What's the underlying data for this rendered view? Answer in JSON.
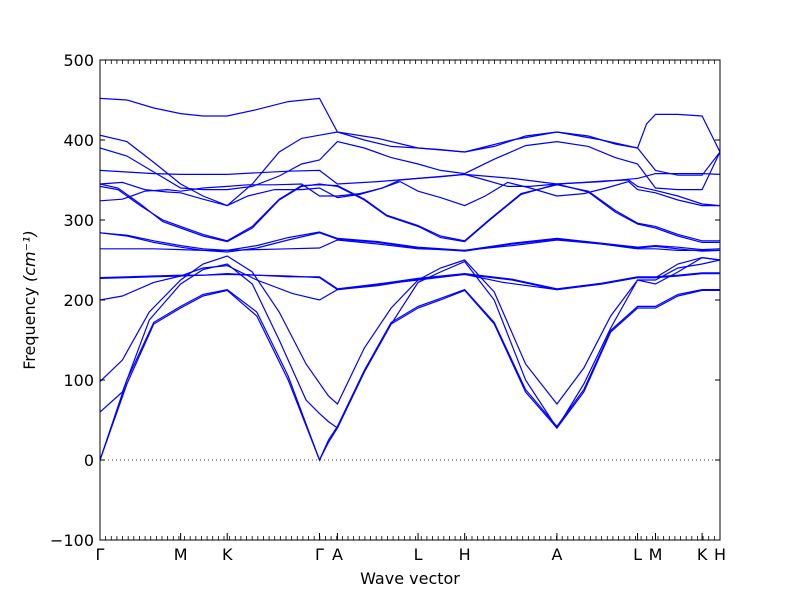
{
  "chart_data": {
    "type": "line",
    "xlabel": "Wave vector",
    "ylabel": "Frequency",
    "ylabel_unit": "(cm⁻¹)",
    "ylim": [
      -100,
      500
    ],
    "yticks": [
      -100,
      0,
      100,
      200,
      300,
      400,
      500
    ],
    "grid": false,
    "zero_line": {
      "y": 0,
      "style": "dotted"
    },
    "line_color": "#0000ff",
    "kpoints": [
      {
        "label": "Γ",
        "x": 0.0
      },
      {
        "label": "M",
        "x": 1.8
      },
      {
        "label": "K",
        "x": 2.84
      },
      {
        "label": "Γ",
        "x": 4.9
      },
      {
        "label": "A",
        "x": 5.3
      },
      {
        "label": "L",
        "x": 7.1
      },
      {
        "label": "H",
        "x": 8.14
      },
      {
        "label": "A",
        "x": 10.2
      },
      {
        "label": "L",
        "x": 12.0
      },
      {
        "label": "M",
        "x": 12.4
      },
      {
        "label": "K",
        "x": 13.44
      },
      {
        "label": "H",
        "x": 13.84
      }
    ],
    "series": [
      {
        "x": [
          0,
          0.6,
          1.2,
          1.8,
          2.3,
          2.84,
          3.5,
          4.2,
          4.9,
          5.1,
          5.3,
          5.9,
          6.5,
          7.1,
          7.6,
          8.14,
          8.8,
          9.5,
          10.2,
          10.8,
          11.4,
          12.0,
          12.4,
          12.9,
          13.44,
          13.84
        ],
        "y": [
          0,
          95,
          170,
          190,
          205,
          212,
          180,
          100,
          0,
          22,
          40,
          110,
          170,
          190,
          200,
          212,
          170,
          85,
          40,
          85,
          160,
          190,
          190,
          205,
          212,
          212
        ]
      },
      {
        "x": [
          0,
          0.6,
          1.2,
          1.8,
          2.3,
          2.84,
          3.5,
          4.2,
          4.9,
          5.1,
          5.3,
          5.9,
          6.5,
          7.1,
          7.6,
          8.14,
          8.8,
          9.5,
          10.2,
          10.8,
          11.4,
          12.0,
          12.4,
          12.9,
          13.44,
          13.84
        ],
        "y": [
          0,
          100,
          172,
          192,
          207,
          213,
          185,
          105,
          0,
          25,
          42,
          112,
          172,
          192,
          202,
          213,
          172,
          88,
          42,
          88,
          162,
          192,
          192,
          207,
          213,
          213
        ]
      },
      {
        "x": [
          0,
          0.5,
          1.1,
          1.8,
          2.3,
          2.84,
          3.4,
          4.0,
          4.6,
          4.9,
          5.1,
          5.3,
          5.9,
          6.5,
          7.1,
          7.6,
          8.14,
          8.8,
          9.5,
          10.2,
          10.8,
          11.4,
          12.0,
          12.4,
          12.9,
          13.44,
          13.84
        ],
        "y": [
          60,
          85,
          175,
          220,
          238,
          245,
          220,
          150,
          75,
          58,
          48,
          40,
          110,
          170,
          222,
          235,
          248,
          200,
          100,
          40,
          95,
          165,
          225,
          225,
          240,
          245,
          250
        ]
      },
      {
        "x": [
          0,
          0.5,
          1.1,
          1.8,
          2.3,
          2.84,
          3.4,
          4.0,
          4.6,
          4.9,
          5.1,
          5.3,
          5.9,
          6.5,
          7.1,
          7.6,
          8.14,
          8.8,
          9.5,
          10.2,
          10.8,
          11.4,
          12.0,
          12.4,
          12.9,
          13.44,
          13.84
        ],
        "y": [
          98,
          125,
          185,
          225,
          245,
          255,
          235,
          185,
          120,
          96,
          80,
          70,
          140,
          190,
          225,
          240,
          250,
          210,
          120,
          70,
          115,
          180,
          225,
          220,
          235,
          253,
          250
        ]
      },
      {
        "x": [
          0,
          0.5,
          1.2,
          1.8,
          2.3,
          2.84,
          3.5,
          4.3,
          4.9,
          5.3,
          6.0,
          7.1,
          8.14,
          9.0,
          10.2,
          11.2,
          12.0,
          12.4,
          12.9,
          13.44,
          13.84
        ],
        "y": [
          200,
          205,
          222,
          230,
          240,
          243,
          225,
          208,
          200,
          213,
          218,
          225,
          232,
          222,
          213,
          220,
          228,
          228,
          245,
          253,
          250
        ]
      },
      {
        "x": [
          0,
          0.6,
          1.2,
          1.8,
          2.3,
          2.84,
          3.5,
          4.2,
          4.9,
          5.3,
          6.2,
          7.1,
          8.14,
          9.2,
          10.2,
          11.2,
          12.0,
          12.4,
          12.9,
          13.44,
          13.84
        ],
        "y": [
          227,
          228,
          229,
          230,
          231,
          232,
          231,
          230,
          228,
          213,
          218,
          226,
          232,
          225,
          213,
          220,
          228,
          228,
          230,
          233,
          233
        ]
      },
      {
        "x": [
          0,
          0.6,
          1.2,
          1.8,
          2.3,
          2.84,
          3.5,
          4.2,
          4.9,
          5.3,
          6.2,
          7.1,
          8.14,
          9.2,
          10.2,
          11.2,
          12.0,
          12.4,
          12.9,
          13.44,
          13.84
        ],
        "y": [
          228,
          229,
          230,
          231,
          231,
          233,
          231,
          229,
          229,
          214,
          220,
          227,
          233,
          226,
          214,
          221,
          229,
          229,
          231,
          234,
          234
        ]
      },
      {
        "x": [
          0,
          0.6,
          1.2,
          1.8,
          2.3,
          2.84,
          3.5,
          4.2,
          4.9,
          5.3,
          6.2,
          7.1,
          8.14,
          9.2,
          10.2,
          11.2,
          12.0,
          12.4,
          12.9,
          13.44,
          13.84
        ],
        "y": [
          264,
          264,
          264,
          263,
          262,
          262,
          263,
          264,
          265,
          275,
          270,
          264,
          262,
          268,
          275,
          270,
          264,
          264,
          262,
          262,
          262
        ]
      },
      {
        "x": [
          0,
          0.6,
          1.2,
          1.8,
          2.3,
          2.84,
          3.5,
          4.2,
          4.9,
          5.3,
          6.2,
          7.1,
          8.14,
          9.2,
          10.2,
          11.2,
          12.0,
          12.4,
          12.9,
          13.44,
          13.84
        ],
        "y": [
          284,
          280,
          272,
          266,
          262,
          260,
          265,
          275,
          284,
          276,
          272,
          265,
          261,
          270,
          276,
          270,
          265,
          267,
          264,
          261,
          262
        ]
      },
      {
        "x": [
          0,
          0.6,
          1.2,
          1.8,
          2.3,
          2.84,
          3.5,
          4.2,
          4.9,
          5.3,
          6.2,
          7.1,
          8.14,
          9.2,
          10.2,
          11.2,
          12.0,
          12.4,
          12.9,
          13.44,
          13.84
        ],
        "y": [
          284,
          281,
          274,
          268,
          264,
          262,
          268,
          278,
          285,
          277,
          273,
          266,
          262,
          271,
          277,
          271,
          266,
          268,
          266,
          263,
          264
        ]
      },
      {
        "x": [
          0,
          0.4,
          0.9,
          1.4,
          1.8,
          2.3,
          2.84,
          3.4,
          4.0,
          4.5,
          4.9,
          5.3,
          5.9,
          6.4,
          7.1,
          7.6,
          8.14,
          8.7,
          9.4,
          10.2,
          10.9,
          11.5,
          12.0,
          12.4,
          12.9,
          13.44,
          13.84
        ],
        "y": [
          345,
          340,
          320,
          298,
          290,
          280,
          273,
          290,
          325,
          342,
          345,
          342,
          325,
          305,
          292,
          278,
          273,
          300,
          332,
          345,
          335,
          310,
          295,
          290,
          280,
          272,
          272
        ]
      },
      {
        "x": [
          0,
          0.4,
          0.9,
          1.4,
          1.8,
          2.3,
          2.84,
          3.4,
          4.0,
          4.5,
          4.9,
          5.3,
          5.9,
          6.4,
          7.1,
          7.6,
          8.14,
          8.7,
          9.4,
          10.2,
          10.9,
          11.5,
          12.0,
          12.4,
          12.9,
          13.44,
          13.84
        ],
        "y": [
          342,
          338,
          318,
          300,
          292,
          282,
          274,
          292,
          326,
          343,
          344,
          343,
          326,
          306,
          293,
          280,
          274,
          301,
          333,
          344,
          336,
          312,
          296,
          292,
          282,
          274,
          274
        ]
      },
      {
        "x": [
          0,
          0.5,
          1.0,
          1.5,
          1.8,
          2.3,
          2.84,
          3.3,
          3.9,
          4.5,
          4.9,
          5.3,
          5.8,
          6.3,
          6.7,
          7.1,
          7.6,
          8.14,
          8.6,
          9.1,
          9.6,
          10.2,
          10.8,
          11.3,
          11.8,
          12.0,
          12.4,
          12.9,
          13.44,
          13.84
        ],
        "y": [
          345,
          347,
          338,
          335,
          334,
          326,
          318,
          330,
          338,
          338,
          340,
          328,
          332,
          340,
          348,
          336,
          328,
          318,
          330,
          347,
          340,
          330,
          333,
          340,
          348,
          338,
          334,
          325,
          318,
          318
        ]
      },
      {
        "x": [
          0,
          0.5,
          1.0,
          1.5,
          1.8,
          2.3,
          2.84,
          3.3,
          3.9,
          4.5,
          4.9,
          5.3,
          5.8,
          6.3,
          6.7,
          7.1,
          7.6,
          8.14,
          8.6,
          9.1,
          9.6,
          10.2,
          10.8,
          11.3,
          11.8,
          12.0,
          12.4,
          12.9,
          13.44,
          13.84
        ],
        "y": [
          324,
          326,
          336,
          338,
          336,
          340,
          342,
          344,
          344,
          345,
          330,
          330,
          333,
          340,
          350,
          352,
          354,
          357,
          350,
          342,
          342,
          345,
          347,
          349,
          350,
          342,
          337,
          330,
          320,
          318
        ]
      },
      {
        "x": [
          0,
          0.6,
          1.2,
          1.8,
          2.3,
          2.84,
          3.5,
          4.2,
          4.9,
          5.3,
          6.2,
          7.1,
          8.14,
          9.2,
          10.2,
          11.2,
          12.0,
          12.4,
          12.9,
          13.44,
          13.84
        ],
        "y": [
          362,
          360,
          358,
          357,
          357,
          357,
          359,
          361,
          362,
          345,
          348,
          352,
          357,
          352,
          345,
          348,
          352,
          358,
          358,
          358,
          357
        ]
      },
      {
        "x": [
          0,
          0.6,
          1.2,
          1.8,
          2.3,
          2.84,
          3.4,
          4.0,
          4.5,
          4.9,
          5.3,
          5.9,
          6.5,
          7.1,
          7.6,
          8.14,
          8.8,
          9.5,
          10.2,
          10.9,
          11.5,
          12.0,
          12.4,
          12.9,
          13.44,
          13.84
        ],
        "y": [
          390,
          380,
          360,
          340,
          338,
          338,
          342,
          355,
          370,
          375,
          398,
          390,
          378,
          370,
          362,
          358,
          376,
          393,
          398,
          392,
          378,
          370,
          340,
          338,
          338,
          385
        ]
      },
      {
        "x": [
          0,
          0.6,
          1.2,
          1.8,
          2.3,
          2.84,
          3.4,
          4.0,
          4.5,
          4.9,
          5.3,
          5.9,
          6.5,
          7.1,
          7.6,
          8.14,
          8.8,
          9.5,
          10.2,
          10.9,
          11.5,
          12.0,
          12.4,
          12.9,
          13.44,
          13.84
        ],
        "y": [
          406,
          398,
          372,
          345,
          330,
          318,
          345,
          385,
          402,
          406,
          410,
          400,
          392,
          390,
          388,
          385,
          392,
          405,
          410,
          405,
          395,
          390,
          362,
          356,
          356,
          385
        ]
      },
      {
        "x": [
          0,
          0.6,
          1.2,
          1.8,
          2.3,
          2.84,
          3.5,
          4.2,
          4.9,
          5.3,
          6.2,
          7.1,
          8.14,
          9.2,
          10.2,
          11.2,
          12.0,
          12.2,
          12.4,
          12.9,
          13.44,
          13.84
        ],
        "y": [
          452,
          450,
          440,
          433,
          430,
          430,
          438,
          448,
          452,
          410,
          402,
          390,
          385,
          400,
          410,
          400,
          390,
          420,
          432,
          432,
          430,
          385
        ]
      }
    ]
  }
}
